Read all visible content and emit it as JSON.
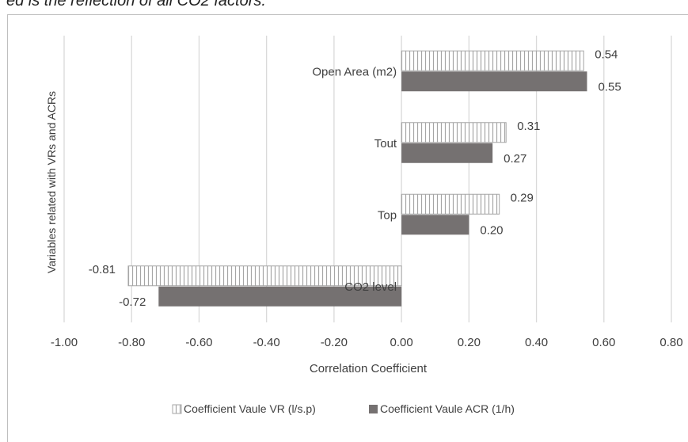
{
  "caption_fragment": "ed is the reflection of all CO2 factors.",
  "chart_data": {
    "type": "bar",
    "orientation": "horizontal",
    "title": "",
    "xlabel": "Correlation Coefficient",
    "ylabel": "Variables  related with VRs and ACRs",
    "xlim": [
      -1.0,
      0.8
    ],
    "xticks": [
      "-1.00",
      "-0.80",
      "-0.60",
      "-0.40",
      "-0.20",
      "0.00",
      "0.20",
      "0.40",
      "0.60",
      "0.80"
    ],
    "categories": [
      "Open Area (m2)",
      "Tout",
      "Top",
      "CO2 level"
    ],
    "series": [
      {
        "name": "Coefficient Vaule VR (l/s.p)",
        "values": [
          0.54,
          0.31,
          0.29,
          -0.81
        ],
        "labels": [
          "0.54",
          "0.31",
          "0.29",
          "-0.81"
        ],
        "fill": "hatched",
        "color": "#a6a6a6"
      },
      {
        "name": "Coefficient Vaule ACR (1/h)",
        "values": [
          0.55,
          0.27,
          0.2,
          -0.72
        ],
        "labels": [
          "0.55",
          "0.27",
          "0.20",
          "-0.72"
        ],
        "fill": "solid",
        "color": "#757171"
      }
    ],
    "grid": true,
    "legend_position": "bottom"
  }
}
